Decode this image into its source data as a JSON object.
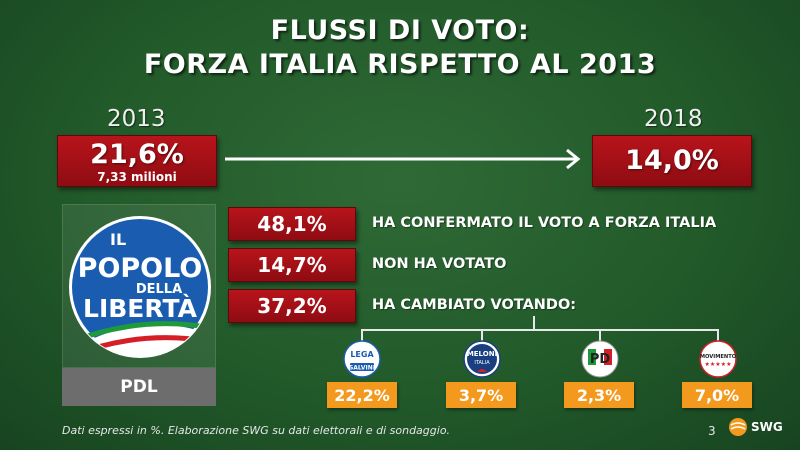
{
  "title_line1": "FLUSSI DI VOTO:",
  "title_line2": "FORZA ITALIA RISPETTO AL 2013",
  "year_left": "2013",
  "year_right": "2018",
  "result_2013": {
    "pct": "21,6%",
    "votes": "7,33 milioni"
  },
  "result_2018": {
    "pct": "14,0%"
  },
  "logo_text": {
    "word1": "IL",
    "word2": "POPOLO",
    "word3": "DELLA",
    "word4": "LIBERTÀ"
  },
  "party_label": "PDL",
  "chart_data": [
    {
      "type": "table",
      "rows": [
        {
          "value": 48.1,
          "value_label": "48,1%",
          "label": "HA CONFERMATO IL VOTO A FORZA ITALIA"
        },
        {
          "value": 14.7,
          "value_label": "14,7%",
          "label": "NON HA VOTATO"
        },
        {
          "value": 37.2,
          "value_label": "37,2%",
          "label": "HA CAMBIATO VOTANDO:"
        }
      ]
    },
    {
      "type": "table",
      "categories": [
        "Lega Salvini",
        "Fratelli d'Italia",
        "Partito Democratico",
        "MoVimento 5 Stelle"
      ],
      "values": [
        22.2,
        3.7,
        2.3,
        7.0
      ],
      "value_labels": [
        "22,2%",
        "3,7%",
        "2,3%",
        "7,0%"
      ]
    }
  ],
  "party_logos": {
    "lega": {
      "top": "LEGA",
      "bottom": "SALVINI"
    },
    "fdi": {
      "top": "MELONI",
      "bottom": "ITALIA"
    },
    "pd": {
      "letters": "PD"
    },
    "m5s": {
      "text": "MOVIMENTO",
      "stars": "★★★★★"
    }
  },
  "colors": {
    "background": "#225a2a",
    "red_box": "#a8121a",
    "orange_box": "#f39a1e",
    "pdl_label_bg": "#6d6d6d"
  },
  "footer": {
    "note": "Dati espressi in %. Elaborazione SWG su dati elettorali e di sondaggio.",
    "page": "3",
    "brand": "SWG"
  }
}
